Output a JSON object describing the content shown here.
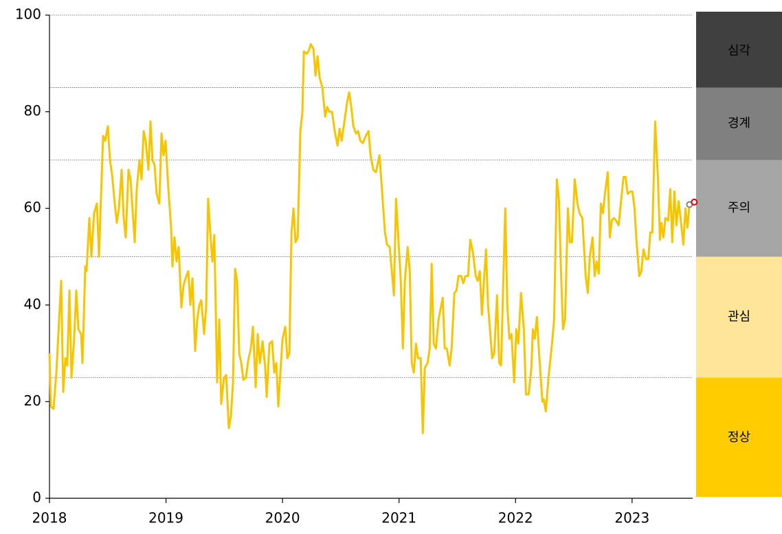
{
  "chart_data": {
    "type": "line",
    "color": "#f7c500",
    "xlim": [
      2018,
      2023.52
    ],
    "ylim": [
      0,
      100
    ],
    "xticks": [
      2018,
      2019,
      2020,
      2021,
      2022,
      2023
    ],
    "yticks": [
      0,
      20,
      40,
      60,
      80,
      100
    ],
    "bands": [
      {
        "label": "정상",
        "from": 0,
        "to": 25,
        "color": "#ffcc00",
        "text_color": "#222222"
      },
      {
        "label": "관심",
        "from": 25,
        "to": 50,
        "color": "#fee599",
        "text_color": "#222222"
      },
      {
        "label": "주의",
        "from": 50,
        "to": 70,
        "color": "#a6a6a6",
        "text_color": "#222222"
      },
      {
        "label": "경계",
        "from": 70,
        "to": 85,
        "color": "#808080",
        "text_color": "#ffffff"
      },
      {
        "label": "심각",
        "from": 85,
        "to": 100,
        "color": "#404040",
        "text_color": "#ffffff"
      }
    ],
    "points": [
      {
        "x": 2023.493,
        "y": 60.8,
        "color": "#808080"
      },
      {
        "x": 2023.534,
        "y": 61.3,
        "color": "#e00000"
      }
    ],
    "x": [
      2018.0,
      2018.012,
      2018.035,
      2018.059,
      2018.1,
      2018.118,
      2018.136,
      2018.153,
      2018.171,
      2018.189,
      2018.212,
      2018.23,
      2018.248,
      2018.271,
      2018.283,
      2018.307,
      2018.318,
      2018.342,
      2018.36,
      2018.383,
      2018.407,
      2018.425,
      2018.442,
      2018.46,
      2018.478,
      2018.501,
      2018.519,
      2018.537,
      2018.56,
      2018.578,
      2018.596,
      2018.619,
      2018.637,
      2018.654,
      2018.678,
      2018.696,
      2018.731,
      2018.749,
      2018.772,
      2018.79,
      2018.808,
      2018.825,
      2018.849,
      2018.867,
      2018.884,
      2018.902,
      2018.92,
      2018.943,
      2018.961,
      2018.979,
      2018.996,
      2019.02,
      2019.044,
      2019.055,
      2019.073,
      2019.091,
      2019.109,
      2019.132,
      2019.15,
      2019.174,
      2019.191,
      2019.209,
      2019.227,
      2019.25,
      2019.268,
      2019.286,
      2019.303,
      2019.327,
      2019.345,
      2019.362,
      2019.38,
      2019.398,
      2019.415,
      2019.439,
      2019.457,
      2019.474,
      2019.498,
      2019.516,
      2019.539,
      2019.557,
      2019.575,
      2019.593,
      2019.61,
      2019.628,
      2019.646,
      2019.664,
      2019.687,
      2019.705,
      2019.728,
      2019.746,
      2019.77,
      2019.787,
      2019.805,
      2019.829,
      2019.852,
      2019.864,
      2019.888,
      2019.911,
      2019.929,
      2019.947,
      2019.964,
      2020.0,
      2020.024,
      2020.041,
      2020.059,
      2020.077,
      2020.094,
      2020.112,
      2020.13,
      2020.153,
      2020.171,
      2020.183,
      2020.207,
      2020.224,
      2020.242,
      2020.266,
      2020.283,
      2020.301,
      2020.319,
      2020.342,
      2020.366,
      2020.384,
      2020.401,
      2020.425,
      2020.448,
      2020.472,
      2020.49,
      2020.507,
      2020.531,
      2020.555,
      2020.572,
      2020.59,
      2020.608,
      2020.631,
      2020.649,
      2020.667,
      2020.69,
      2020.714,
      2020.738,
      2020.755,
      2020.779,
      2020.802,
      2020.832,
      2020.85,
      2020.879,
      2020.897,
      2020.92,
      2020.938,
      2020.956,
      2020.974,
      2020.991,
      2021.015,
      2021.033,
      2021.05,
      2021.074,
      2021.092,
      2021.109,
      2021.127,
      2021.145,
      2021.162,
      2021.186,
      2021.204,
      2021.221,
      2021.245,
      2021.263,
      2021.28,
      2021.298,
      2021.316,
      2021.339,
      2021.375,
      2021.392,
      2021.41,
      2021.434,
      2021.451,
      2021.475,
      2021.493,
      2021.51,
      2021.534,
      2021.552,
      2021.569,
      2021.593,
      2021.611,
      2021.634,
      2021.658,
      2021.676,
      2021.693,
      2021.711,
      2021.729,
      2021.746,
      2021.764,
      2021.8,
      2021.817,
      2021.841,
      2021.859,
      2021.876,
      2021.912,
      2021.929,
      2021.947,
      2021.965,
      2021.988,
      2022.006,
      2022.024,
      2022.047,
      2022.071,
      2022.089,
      2022.112,
      2022.136,
      2022.148,
      2022.165,
      2022.183,
      2022.207,
      2022.23,
      2022.242,
      2022.26,
      2022.283,
      2022.313,
      2022.331,
      2022.354,
      2022.372,
      2022.39,
      2022.407,
      2022.425,
      2022.449,
      2022.466,
      2022.484,
      2022.508,
      2022.531,
      2022.549,
      2022.573,
      2022.602,
      2022.62,
      2022.637,
      2022.661,
      2022.679,
      2022.696,
      2022.714,
      2022.732,
      2022.75,
      2022.767,
      2022.791,
      2022.809,
      2022.826,
      2022.844,
      2022.862,
      2022.885,
      2022.903,
      2022.927,
      2022.944,
      2022.962,
      2022.986,
      2023.003,
      2023.021,
      2023.039,
      2023.062,
      2023.08,
      2023.098,
      2023.121,
      2023.139,
      2023.157,
      2023.174,
      2023.198,
      2023.222,
      2023.239,
      2023.251,
      2023.269,
      2023.286,
      2023.31,
      2023.328,
      2023.345,
      2023.363,
      2023.381,
      2023.399,
      2023.416,
      2023.44,
      2023.458,
      2023.475,
      2023.493
    ],
    "values": [
      30,
      19,
      18.5,
      26,
      45,
      22,
      29,
      27.5,
      43,
      25,
      33,
      43,
      35,
      34,
      28,
      48,
      47,
      58,
      50,
      59,
      61,
      50,
      62,
      75,
      74,
      77,
      70,
      67,
      61,
      57,
      60,
      68,
      58,
      54,
      68,
      66,
      53,
      64,
      70,
      66,
      76,
      74,
      68,
      78,
      70,
      69,
      63,
      61,
      75.5,
      71,
      74,
      64,
      56,
      48,
      54,
      49,
      52,
      39.5,
      44,
      46,
      47,
      40,
      45.5,
      30.5,
      37,
      40,
      41,
      34,
      40,
      62,
      55,
      49,
      54.5,
      24,
      37,
      19.5,
      25,
      25.5,
      14.5,
      17,
      24,
      47.5,
      45,
      30,
      28,
      24.5,
      25,
      28.5,
      31,
      35.5,
      23,
      34,
      28,
      32.5,
      27,
      21,
      32,
      32.5,
      26,
      28,
      19,
      33,
      35.5,
      29,
      30,
      55,
      60,
      53,
      54,
      76,
      80,
      92.5,
      92,
      92.5,
      94,
      93,
      87.5,
      91.5,
      87,
      85,
      79,
      81,
      80,
      80,
      76,
      73,
      76.5,
      74,
      78,
      82,
      84,
      81,
      77,
      75.5,
      76,
      74,
      73.5,
      75,
      76,
      71,
      68,
      67.5,
      71,
      65,
      55,
      52.5,
      52,
      47,
      42,
      62,
      55,
      45,
      31,
      45,
      52,
      47,
      28,
      26,
      32,
      29,
      29,
      13.5,
      27,
      28,
      31,
      48.5,
      32,
      31,
      37,
      41.5,
      31,
      31,
      27.5,
      31,
      42.5,
      43,
      46,
      46,
      44.5,
      46,
      46,
      53.5,
      51,
      46,
      45,
      47,
      38,
      45,
      51.5,
      40,
      29,
      30,
      42,
      28,
      27.5,
      60,
      40,
      33,
      34,
      24,
      35,
      32,
      42.5,
      35,
      21.5,
      21.5,
      27,
      35,
      33,
      37.5,
      28,
      20,
      20.5,
      18,
      25,
      32,
      37,
      66,
      62,
      47,
      35,
      37,
      60,
      53,
      53,
      66,
      61,
      59,
      58,
      46,
      42.5,
      50,
      54,
      46,
      49,
      46.5,
      61,
      59,
      63,
      67.5,
      54,
      57.5,
      58,
      57.5,
      56.5,
      61,
      66.5,
      66.5,
      63,
      63.5,
      63.5,
      60,
      53,
      46,
      47,
      51.5,
      49.5,
      49.5,
      55,
      55,
      78,
      66,
      53.5,
      57,
      54,
      58,
      57.5,
      64,
      53,
      63.5,
      56.5,
      61.5,
      58,
      52.5,
      60,
      56,
      60.8
    ]
  }
}
